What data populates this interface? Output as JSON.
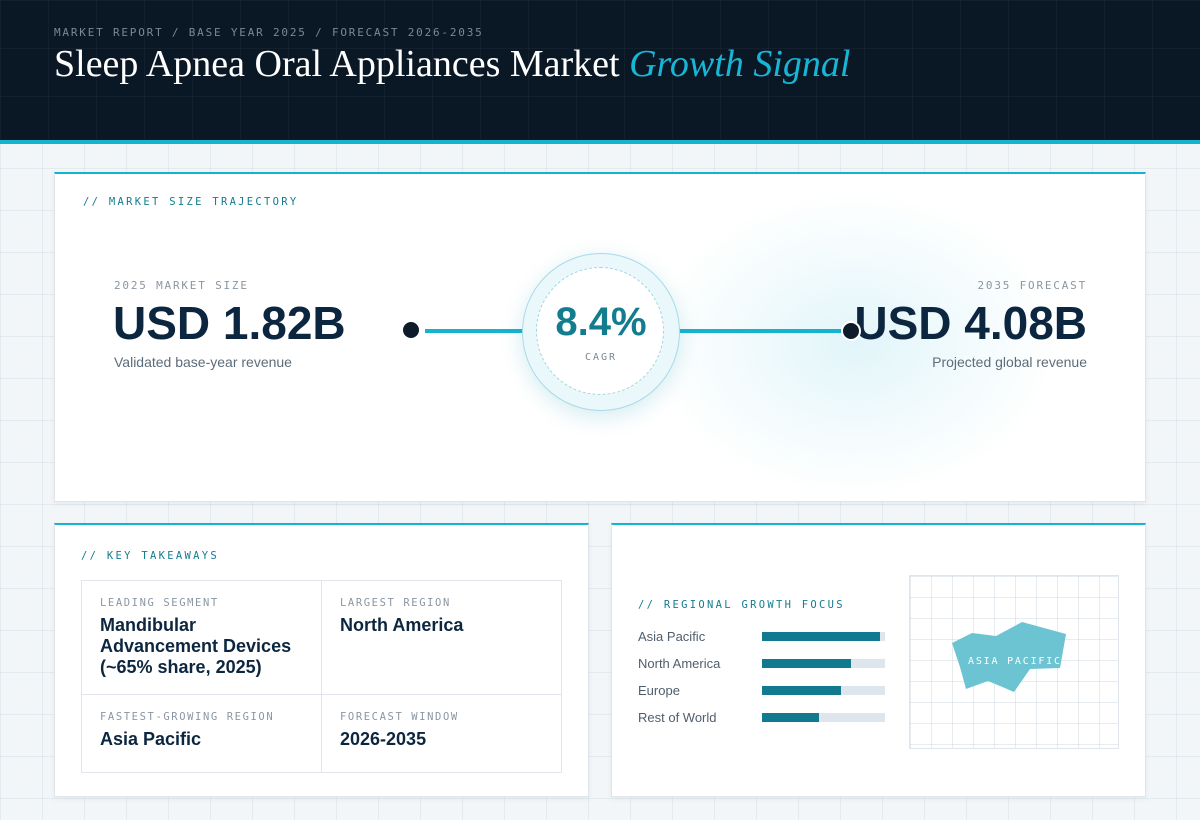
{
  "header": {
    "eyebrow": "MARKET REPORT / BASE YEAR 2025 / FORECAST 2026-2035",
    "title_main": "Sleep Apnea Oral Appliances Market",
    "title_accent": "Growth Signal"
  },
  "trajectory": {
    "section_label": "// MARKET SIZE TRAJECTORY",
    "start": {
      "caption": "2025 MARKET SIZE",
      "value": "USD 1.82B",
      "description": "Validated base-year revenue"
    },
    "end": {
      "caption": "2035 FORECAST",
      "value": "USD 4.08B",
      "description": "Projected global revenue"
    },
    "cagr": {
      "value": "8.4%",
      "label": "CAGR"
    }
  },
  "takeaways": {
    "section_label": "// KEY TAKEAWAYS",
    "items": [
      {
        "label": "LEADING SEGMENT",
        "value": "Mandibular Advancement Devices (~65% share, 2025)"
      },
      {
        "label": "LARGEST REGION",
        "value": "North America"
      },
      {
        "label": "FASTEST-GROWING REGION",
        "value": "Asia Pacific"
      },
      {
        "label": "FORECAST WINDOW",
        "value": "2026-2035"
      }
    ]
  },
  "regional": {
    "section_label": "// REGIONAL GROWTH FOCUS",
    "rows": [
      {
        "name": "Asia Pacific",
        "level": 0.96
      },
      {
        "name": "North America",
        "level": 0.72
      },
      {
        "name": "Europe",
        "level": 0.64
      },
      {
        "name": "Rest of World",
        "level": 0.46
      }
    ],
    "map_label": "ASIA PACIFIC",
    "colors": {
      "bar": "#117a8e",
      "track": "#dde6ec",
      "map_shape": "#6cc4d3"
    }
  },
  "colors": {
    "accent": "#14b4cf",
    "header_bg": "#0a1724",
    "navy_text": "#0d2640"
  }
}
